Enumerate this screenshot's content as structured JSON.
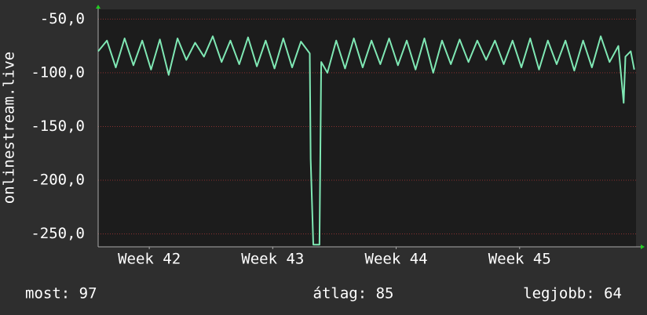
{
  "chart_data": {
    "type": "line",
    "y_label": "onlinestream.live",
    "x": [
      0,
      0.5,
      1,
      1.5,
      2,
      2.5,
      3,
      3.5,
      4,
      4.5,
      5,
      5.5,
      6,
      6.5,
      7,
      7.5,
      8,
      8.5,
      9,
      9.5,
      10,
      10.5,
      11,
      11.5,
      12,
      12.05,
      12.2,
      12.55,
      12.65,
      13,
      13.5,
      14,
      14.5,
      15,
      15.5,
      16,
      16.5,
      17,
      17.5,
      18,
      18.5,
      19,
      19.5,
      20,
      20.5,
      21,
      21.5,
      22,
      22.5,
      23,
      23.5,
      24,
      24.5,
      25,
      25.5,
      26,
      26.5,
      27,
      27.5,
      28,
      28.5,
      29,
      29.5,
      29.8,
      29.9,
      30.2,
      30.4
    ],
    "series": [
      {
        "name": "onlinestream.live",
        "color": "#7fe8b4",
        "values": [
          -80,
          -70,
          -95,
          -68,
          -93,
          -70,
          -97,
          -69,
          -102,
          -68,
          -88,
          -72,
          -85,
          -66,
          -90,
          -70,
          -92,
          -67,
          -94,
          -70,
          -96,
          -68,
          -95,
          -71,
          -82,
          -180,
          -260,
          -260,
          -90,
          -100,
          -70,
          -96,
          -68,
          -95,
          -70,
          -92,
          -68,
          -93,
          -70,
          -97,
          -68,
          -100,
          -70,
          -92,
          -69,
          -90,
          -70,
          -88,
          -70,
          -92,
          -70,
          -95,
          -68,
          -97,
          -70,
          -92,
          -70,
          -98,
          -70,
          -95,
          -66,
          -90,
          -75,
          -128,
          -85,
          -80,
          -97
        ]
      }
    ],
    "xlim": [
      0,
      30.5
    ],
    "xticks": [
      {
        "value": 2.9,
        "label": "Week 42"
      },
      {
        "value": 9.9,
        "label": "Week 43"
      },
      {
        "value": 16.9,
        "label": "Week 44"
      },
      {
        "value": 23.9,
        "label": "Week 45"
      }
    ],
    "ylim": [
      -262,
      -41
    ],
    "yticks": [
      {
        "value": -250,
        "label": "-250,0"
      },
      {
        "value": -200,
        "label": "-200,0"
      },
      {
        "value": -150,
        "label": "-150,0"
      },
      {
        "value": -100,
        "label": "-100,0"
      },
      {
        "value": -50,
        "label": "-50,0"
      }
    ],
    "grid": true,
    "legend_stats": [
      "most: 97",
      "átlag: 85",
      "legjobb: 64"
    ]
  }
}
